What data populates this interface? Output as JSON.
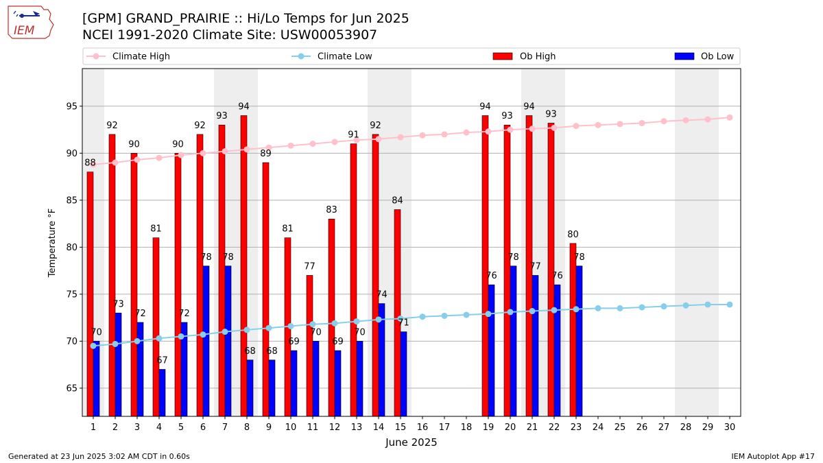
{
  "header": {
    "title_line1": "[GPM] GRAND_PRAIRIE :: Hi/Lo Temps for Jun 2025",
    "title_line2": "NCEI 1991-2020 Climate Site: USW00053907",
    "logo_text": "IEM"
  },
  "footer": {
    "generated": "Generated at 23 Jun 2025 3:02 AM CDT in 0.60s",
    "app": "IEM Autoplot App #17"
  },
  "colors": {
    "climate_high": "#ffc0cb",
    "climate_low": "#87ceeb",
    "ob_high": "#ff0000",
    "ob_low": "#0000ff",
    "weekend_shade": "#eeeeee",
    "grid": "#b0b0b0"
  },
  "chart_data": {
    "type": "bar",
    "xlabel": "June 2025",
    "ylabel": "Temperature °F",
    "ylim": [
      62,
      99
    ],
    "yticks": [
      65,
      70,
      75,
      80,
      85,
      90,
      95
    ],
    "grid": "horizontal",
    "legend_placement": "top",
    "days": [
      1,
      2,
      3,
      4,
      5,
      6,
      7,
      8,
      9,
      10,
      11,
      12,
      13,
      14,
      15,
      16,
      17,
      18,
      19,
      20,
      21,
      22,
      23,
      24,
      25,
      26,
      27,
      28,
      29,
      30
    ],
    "weekend_days": [
      1,
      7,
      8,
      14,
      15,
      21,
      22,
      28,
      29
    ],
    "series": [
      {
        "name": "Climate High",
        "kind": "line",
        "values": [
          88.8,
          89.0,
          89.3,
          89.5,
          89.8,
          90.0,
          90.2,
          90.4,
          90.6,
          90.8,
          91.0,
          91.2,
          91.4,
          91.5,
          91.7,
          91.9,
          92.0,
          92.2,
          92.3,
          92.5,
          92.6,
          92.7,
          92.9,
          93.0,
          93.1,
          93.2,
          93.4,
          93.5,
          93.6,
          93.8
        ]
      },
      {
        "name": "Climate Low",
        "kind": "line",
        "values": [
          69.5,
          69.7,
          70.0,
          70.3,
          70.5,
          70.7,
          71.0,
          71.2,
          71.4,
          71.6,
          71.8,
          71.9,
          72.1,
          72.3,
          72.4,
          72.6,
          72.7,
          72.8,
          72.9,
          73.1,
          73.2,
          73.3,
          73.4,
          73.5,
          73.5,
          73.6,
          73.7,
          73.8,
          73.9,
          73.9
        ]
      },
      {
        "name": "Ob High",
        "kind": "bar",
        "values": [
          88,
          92,
          90,
          81,
          90,
          92,
          93,
          94,
          89,
          81,
          77,
          83,
          91,
          92,
          84,
          null,
          null,
          null,
          94,
          93,
          94,
          93,
          80,
          null,
          null,
          null,
          null,
          null,
          null,
          null
        ],
        "bar_tops": [
          88,
          92,
          90,
          81,
          90,
          92,
          93,
          94,
          89,
          81,
          77,
          83,
          91,
          92,
          84,
          null,
          null,
          null,
          94,
          93,
          94,
          93.2,
          80.4,
          null,
          null,
          null,
          null,
          null,
          null,
          null
        ]
      },
      {
        "name": "Ob Low",
        "kind": "bar",
        "values": [
          70,
          73,
          72,
          67,
          72,
          78,
          78,
          68,
          68,
          69,
          70,
          69,
          70,
          74,
          71,
          null,
          null,
          null,
          76,
          78,
          77,
          76,
          78,
          null,
          null,
          null,
          null,
          null,
          null,
          null
        ]
      }
    ]
  }
}
